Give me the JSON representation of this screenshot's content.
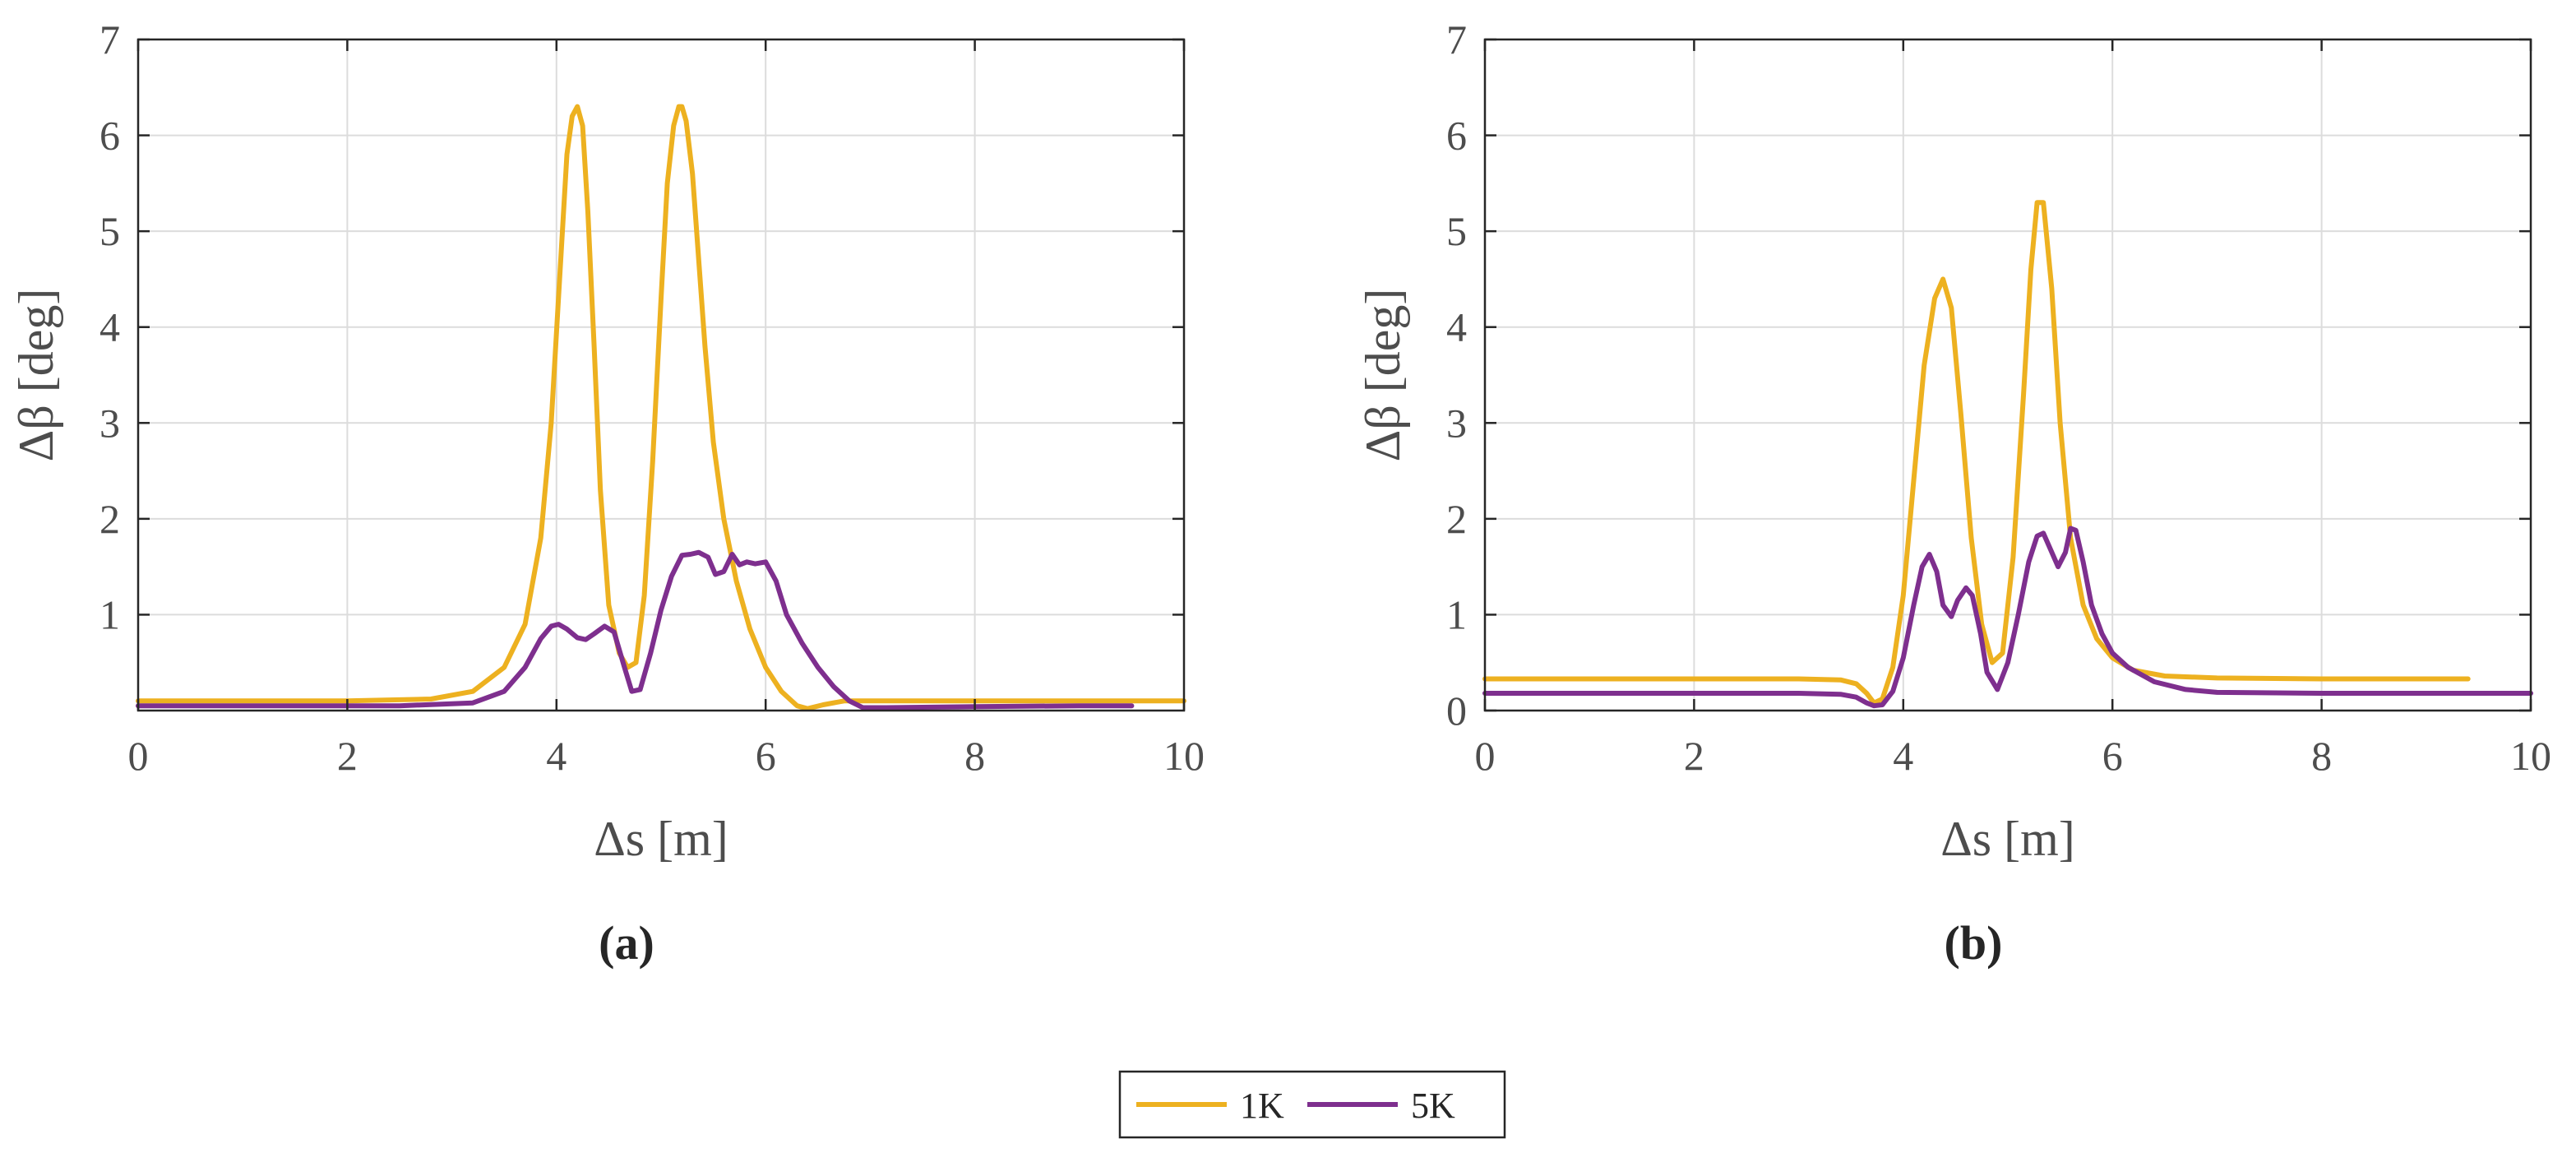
{
  "chart_data": [
    {
      "type": "line",
      "panel_label": "(a)",
      "xlabel": "Δs [m]",
      "ylabel": "Δβ [deg]",
      "xlim": [
        0,
        10
      ],
      "ylim": [
        0,
        7
      ],
      "xticks": [
        0,
        2,
        4,
        6,
        8,
        10
      ],
      "yticks": [
        1,
        2,
        3,
        4,
        5,
        6,
        7
      ],
      "grid": true,
      "series": [
        {
          "name": "1K",
          "color": "#EDB120",
          "x": [
            0,
            2,
            2.8,
            3.2,
            3.5,
            3.7,
            3.85,
            3.95,
            4.03,
            4.1,
            4.15,
            4.2,
            4.25,
            4.3,
            4.36,
            4.42,
            4.5,
            4.6,
            4.68,
            4.76,
            4.84,
            4.92,
            5.0,
            5.06,
            5.12,
            5.17,
            5.2,
            5.24,
            5.3,
            5.36,
            5.42,
            5.5,
            5.6,
            5.72,
            5.85,
            6.0,
            6.15,
            6.3,
            6.4,
            6.55,
            6.75,
            7.0,
            8,
            9,
            10
          ],
          "y": [
            0.1,
            0.1,
            0.12,
            0.2,
            0.45,
            0.9,
            1.8,
            3.0,
            4.5,
            5.8,
            6.2,
            6.3,
            6.1,
            5.2,
            3.8,
            2.3,
            1.1,
            0.6,
            0.45,
            0.5,
            1.2,
            2.6,
            4.3,
            5.5,
            6.1,
            6.3,
            6.3,
            6.15,
            5.6,
            4.7,
            3.8,
            2.8,
            2.0,
            1.35,
            0.85,
            0.45,
            0.2,
            0.05,
            0.02,
            0.06,
            0.1,
            0.1,
            0.1,
            0.1,
            0.1
          ]
        },
        {
          "name": "5K",
          "color": "#7E2F8E",
          "x": [
            0,
            2.5,
            3.2,
            3.5,
            3.7,
            3.85,
            3.95,
            4.02,
            4.1,
            4.2,
            4.28,
            4.36,
            4.46,
            4.55,
            4.65,
            4.72,
            4.8,
            4.9,
            5.0,
            5.1,
            5.2,
            5.28,
            5.36,
            5.45,
            5.52,
            5.6,
            5.68,
            5.75,
            5.82,
            5.9,
            6.0,
            6.1,
            6.2,
            6.35,
            6.5,
            6.65,
            6.8,
            6.93,
            7.15,
            8,
            9,
            9.5
          ],
          "y": [
            0.05,
            0.05,
            0.08,
            0.2,
            0.45,
            0.75,
            0.88,
            0.9,
            0.85,
            0.76,
            0.74,
            0.8,
            0.88,
            0.82,
            0.45,
            0.2,
            0.22,
            0.6,
            1.05,
            1.4,
            1.62,
            1.63,
            1.65,
            1.6,
            1.42,
            1.45,
            1.63,
            1.52,
            1.55,
            1.53,
            1.55,
            1.35,
            1.0,
            0.7,
            0.45,
            0.25,
            0.1,
            0.03,
            0.03,
            0.04,
            0.05,
            0.05
          ]
        }
      ]
    },
    {
      "type": "line",
      "panel_label": "(b)",
      "xlabel": "Δs [m]",
      "ylabel": "Δβ [deg]",
      "xlim": [
        0,
        10
      ],
      "ylim": [
        0,
        7
      ],
      "xticks": [
        0,
        2,
        4,
        6,
        8,
        10
      ],
      "yticks": [
        0,
        1,
        2,
        3,
        4,
        5,
        6,
        7
      ],
      "grid": true,
      "series": [
        {
          "name": "1K",
          "color": "#EDB120",
          "x": [
            0,
            3,
            3.4,
            3.55,
            3.65,
            3.72,
            3.8,
            3.9,
            4.0,
            4.1,
            4.2,
            4.3,
            4.38,
            4.46,
            4.55,
            4.65,
            4.75,
            4.85,
            4.95,
            5.05,
            5.15,
            5.22,
            5.28,
            5.34,
            5.42,
            5.5,
            5.6,
            5.72,
            5.85,
            6.0,
            6.2,
            6.5,
            7,
            8,
            9,
            9.4
          ],
          "y": [
            0.33,
            0.33,
            0.32,
            0.28,
            0.18,
            0.08,
            0.12,
            0.45,
            1.2,
            2.4,
            3.6,
            4.3,
            4.5,
            4.2,
            3.1,
            1.8,
            0.9,
            0.5,
            0.6,
            1.6,
            3.3,
            4.6,
            5.3,
            5.3,
            4.4,
            3.0,
            1.8,
            1.1,
            0.75,
            0.55,
            0.42,
            0.36,
            0.34,
            0.33,
            0.33,
            0.33
          ]
        },
        {
          "name": "5K",
          "color": "#7E2F8E",
          "x": [
            0,
            3,
            3.4,
            3.55,
            3.65,
            3.72,
            3.8,
            3.9,
            4.0,
            4.1,
            4.18,
            4.25,
            4.32,
            4.38,
            4.46,
            4.52,
            4.6,
            4.66,
            4.74,
            4.8,
            4.9,
            5.0,
            5.1,
            5.2,
            5.28,
            5.34,
            5.4,
            5.48,
            5.55,
            5.6,
            5.65,
            5.72,
            5.8,
            5.9,
            6.0,
            6.15,
            6.4,
            6.7,
            7,
            8,
            9,
            10
          ],
          "y": [
            0.18,
            0.18,
            0.17,
            0.14,
            0.08,
            0.05,
            0.06,
            0.2,
            0.55,
            1.1,
            1.5,
            1.63,
            1.45,
            1.1,
            0.98,
            1.15,
            1.28,
            1.2,
            0.8,
            0.4,
            0.22,
            0.5,
            1.0,
            1.55,
            1.82,
            1.85,
            1.7,
            1.5,
            1.65,
            1.9,
            1.88,
            1.55,
            1.1,
            0.8,
            0.6,
            0.45,
            0.3,
            0.22,
            0.19,
            0.18,
            0.18,
            0.18
          ]
        }
      ]
    }
  ],
  "legend": {
    "placement": "bottom-center",
    "entries": [
      {
        "label": "1K",
        "color": "#EDB120"
      },
      {
        "label": "5K",
        "color": "#7E2F8E"
      }
    ]
  }
}
